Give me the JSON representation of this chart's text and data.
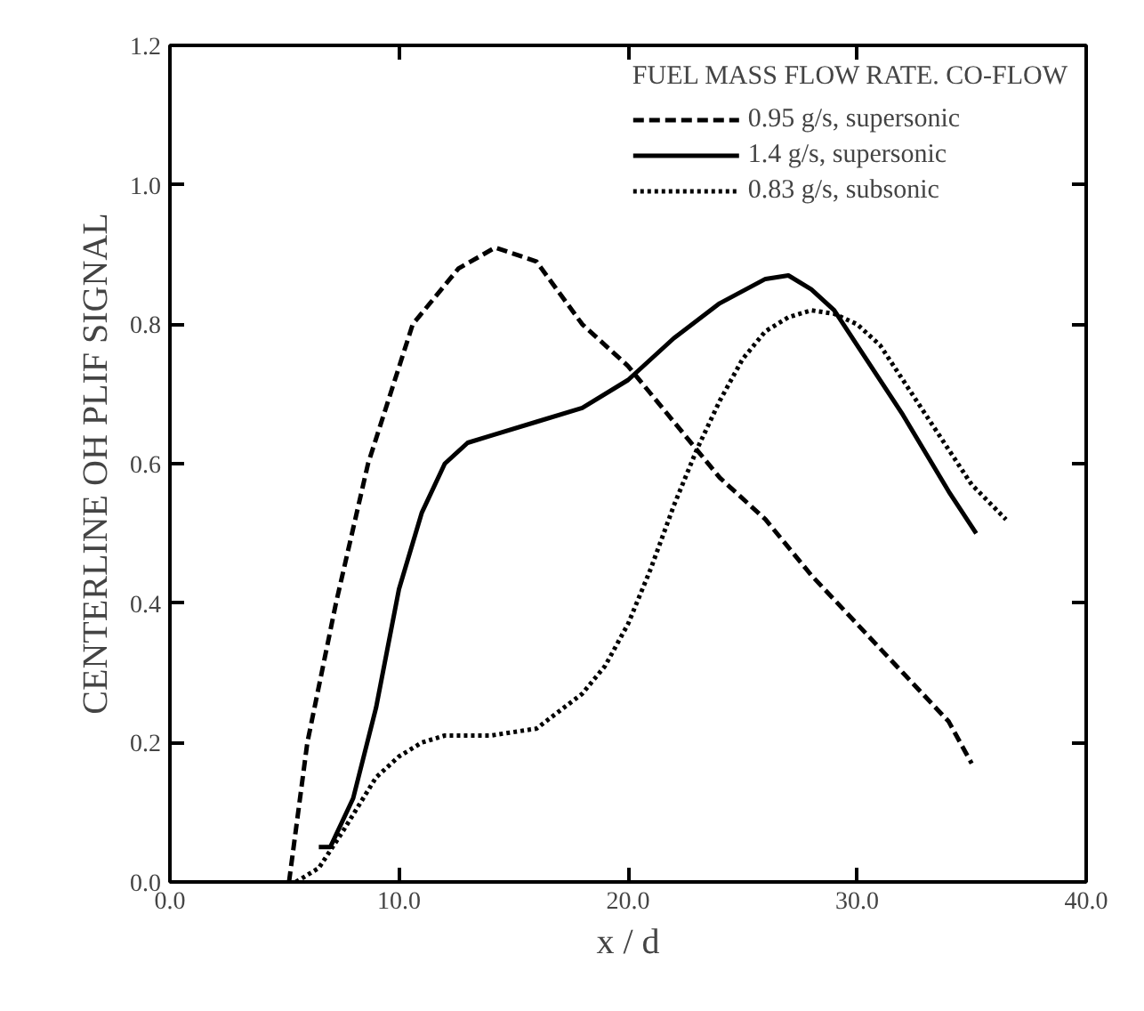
{
  "chart_data": {
    "type": "line",
    "xlabel": "x / d",
    "ylabel": "CENTERLINE OH PLIF SIGNAL",
    "legend_title": "FUEL MASS FLOW RATE. CO-FLOW",
    "legend": "top right",
    "grid": false,
    "marker": "none",
    "xlim": [
      0,
      40
    ],
    "ylim": [
      0,
      1.2
    ],
    "xticks": [
      {
        "value": 0,
        "label": "0.0"
      },
      {
        "value": 10,
        "label": "10.0"
      },
      {
        "value": 20,
        "label": "20.0"
      },
      {
        "value": 30,
        "label": "30.0"
      },
      {
        "value": 40,
        "label": "40.0"
      }
    ],
    "yticks": [
      {
        "value": 0,
        "label": "0.0"
      },
      {
        "value": 0.2,
        "label": "0.2"
      },
      {
        "value": 0.4,
        "label": "0.4"
      },
      {
        "value": 0.6,
        "label": "0.6"
      },
      {
        "value": 0.8,
        "label": "0.8"
      },
      {
        "value": 1.0,
        "label": "1.0"
      },
      {
        "value": 1.2,
        "label": "1.2"
      }
    ],
    "series": [
      {
        "name": "0.95 g/s, supersonic",
        "color": "#000000",
        "line_style": "dashed",
        "x": [
          5.2,
          6.0,
          7.25,
          8.65,
          10.6,
          12.6,
          14.2,
          16,
          18,
          20,
          22,
          24,
          26,
          28,
          30,
          32,
          34,
          35
        ],
        "values": [
          0,
          0.2,
          0.4,
          0.6,
          0.8,
          0.88,
          0.91,
          0.89,
          0.8,
          0.74,
          0.66,
          0.58,
          0.52,
          0.44,
          0.37,
          0.3,
          0.23,
          0.17
        ]
      },
      {
        "name": "1.4 g/s, supersonic",
        "color": "#000000",
        "line_style": "solid",
        "x": [
          6.5,
          7,
          8,
          9,
          10,
          11,
          12,
          13,
          14,
          16,
          18,
          20,
          22,
          24,
          26,
          27,
          28,
          29,
          30,
          32,
          34,
          35.2
        ],
        "values": [
          0.05,
          0.05,
          0.12,
          0.25,
          0.42,
          0.53,
          0.6,
          0.63,
          0.64,
          0.66,
          0.68,
          0.72,
          0.78,
          0.83,
          0.865,
          0.87,
          0.85,
          0.82,
          0.77,
          0.67,
          0.56,
          0.5
        ]
      },
      {
        "name": "0.83 g/s, subsonic",
        "color": "#000000",
        "line_style": "dotted",
        "x": [
          5.5,
          6.5,
          7.5,
          9,
          10,
          11,
          12,
          14,
          16,
          18,
          19,
          20,
          21,
          22,
          23,
          24,
          25,
          26,
          27,
          28,
          29,
          30,
          31,
          32,
          34,
          35,
          36.5
        ],
        "values": [
          0,
          0.02,
          0.07,
          0.15,
          0.18,
          0.2,
          0.21,
          0.21,
          0.22,
          0.27,
          0.31,
          0.37,
          0.45,
          0.54,
          0.62,
          0.69,
          0.75,
          0.79,
          0.81,
          0.82,
          0.815,
          0.8,
          0.77,
          0.72,
          0.62,
          0.57,
          0.52
        ]
      }
    ]
  }
}
